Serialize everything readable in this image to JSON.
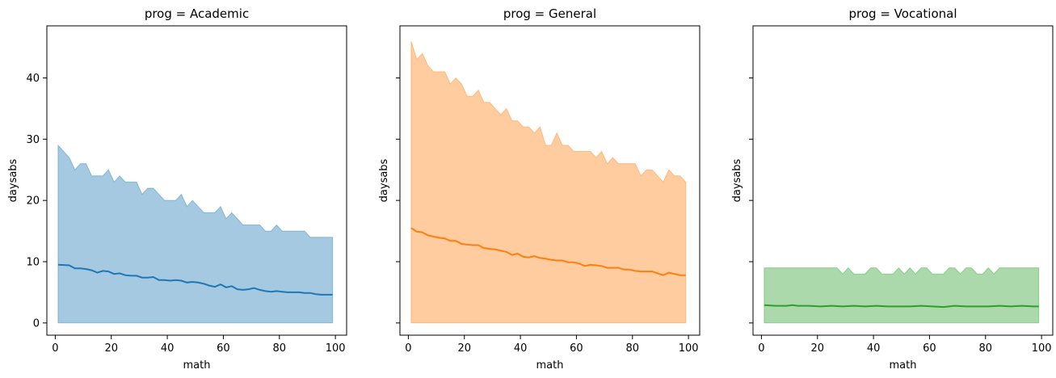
{
  "chart_data": [
    {
      "type": "area",
      "title": "prog = Academic",
      "xlabel": "math",
      "ylabel": "daysabs",
      "xlim": [
        -3,
        104
      ],
      "ylim": [
        -2,
        48.5
      ],
      "xticks": [
        0,
        20,
        40,
        60,
        80,
        100
      ],
      "yticks": [
        0,
        10,
        20,
        30,
        40
      ],
      "show_y_tick_labels": true,
      "grid": false,
      "color": "#1f77b4",
      "band_color": "#1f77b4",
      "band_lower": [
        [
          1,
          0
        ],
        [
          99,
          0
        ]
      ],
      "band_upper": [
        [
          1,
          29
        ],
        [
          5,
          27
        ],
        [
          7,
          25
        ],
        [
          9,
          26
        ],
        [
          11,
          26
        ],
        [
          13,
          24
        ],
        [
          15,
          24
        ],
        [
          17,
          24
        ],
        [
          19,
          25
        ],
        [
          21,
          23
        ],
        [
          23,
          24
        ],
        [
          25,
          23
        ],
        [
          27,
          23
        ],
        [
          29,
          23
        ],
        [
          31,
          21
        ],
        [
          33,
          22
        ],
        [
          35,
          22
        ],
        [
          37,
          21
        ],
        [
          39,
          20
        ],
        [
          41,
          20
        ],
        [
          43,
          20
        ],
        [
          45,
          21
        ],
        [
          47,
          19
        ],
        [
          49,
          20
        ],
        [
          51,
          19
        ],
        [
          53,
          18
        ],
        [
          55,
          18
        ],
        [
          57,
          18
        ],
        [
          59,
          19
        ],
        [
          61,
          17
        ],
        [
          63,
          18
        ],
        [
          65,
          17
        ],
        [
          67,
          16
        ],
        [
          69,
          16
        ],
        [
          71,
          16
        ],
        [
          73,
          16
        ],
        [
          75,
          15
        ],
        [
          77,
          15
        ],
        [
          79,
          16
        ],
        [
          81,
          15
        ],
        [
          83,
          15
        ],
        [
          85,
          15
        ],
        [
          87,
          15
        ],
        [
          89,
          15
        ],
        [
          91,
          14
        ],
        [
          93,
          14
        ],
        [
          95,
          14
        ],
        [
          97,
          14
        ],
        [
          99,
          14
        ]
      ],
      "line": [
        [
          1,
          9.5
        ],
        [
          5,
          9.4
        ],
        [
          7,
          8.9
        ],
        [
          9,
          8.9
        ],
        [
          11,
          8.8
        ],
        [
          13,
          8.6
        ],
        [
          15,
          8.2
        ],
        [
          17,
          8.5
        ],
        [
          19,
          8.4
        ],
        [
          21,
          8.0
        ],
        [
          23,
          8.1
        ],
        [
          25,
          7.8
        ],
        [
          27,
          7.7
        ],
        [
          29,
          7.7
        ],
        [
          31,
          7.4
        ],
        [
          33,
          7.4
        ],
        [
          35,
          7.5
        ],
        [
          37,
          7.0
        ],
        [
          39,
          7.0
        ],
        [
          41,
          6.9
        ],
        [
          43,
          7.0
        ],
        [
          45,
          6.9
        ],
        [
          47,
          6.6
        ],
        [
          49,
          6.7
        ],
        [
          51,
          6.6
        ],
        [
          53,
          6.4
        ],
        [
          55,
          6.1
        ],
        [
          57,
          5.9
        ],
        [
          59,
          6.3
        ],
        [
          61,
          5.8
        ],
        [
          63,
          6.0
        ],
        [
          65,
          5.5
        ],
        [
          67,
          5.4
        ],
        [
          69,
          5.5
        ],
        [
          71,
          5.7
        ],
        [
          73,
          5.4
        ],
        [
          75,
          5.2
        ],
        [
          77,
          5.1
        ],
        [
          79,
          5.2
        ],
        [
          81,
          5.1
        ],
        [
          83,
          5.0
        ],
        [
          85,
          5.0
        ],
        [
          87,
          5.0
        ],
        [
          89,
          4.9
        ],
        [
          91,
          4.9
        ],
        [
          93,
          4.7
        ],
        [
          95,
          4.6
        ],
        [
          97,
          4.6
        ],
        [
          99,
          4.6
        ]
      ]
    },
    {
      "type": "area",
      "title": "prog = General",
      "xlabel": "math",
      "ylabel": "daysabs",
      "xlim": [
        -3,
        104
      ],
      "ylim": [
        -2,
        48.5
      ],
      "xticks": [
        0,
        20,
        40,
        60,
        80,
        100
      ],
      "yticks": [
        0,
        10,
        20,
        30,
        40
      ],
      "show_y_tick_labels": false,
      "grid": false,
      "color": "#ff7f0e",
      "band_color": "#ff7f0e",
      "band_lower": [
        [
          1,
          0
        ],
        [
          99,
          0
        ]
      ],
      "band_upper": [
        [
          1,
          46
        ],
        [
          3,
          43
        ],
        [
          5,
          44
        ],
        [
          7,
          42
        ],
        [
          9,
          41
        ],
        [
          11,
          41
        ],
        [
          13,
          41
        ],
        [
          15,
          39
        ],
        [
          17,
          40
        ],
        [
          19,
          39
        ],
        [
          21,
          37
        ],
        [
          23,
          37
        ],
        [
          25,
          38
        ],
        [
          27,
          36
        ],
        [
          29,
          36
        ],
        [
          31,
          35
        ],
        [
          33,
          34
        ],
        [
          35,
          35
        ],
        [
          37,
          33
        ],
        [
          39,
          33
        ],
        [
          41,
          32
        ],
        [
          43,
          32
        ],
        [
          45,
          31
        ],
        [
          47,
          32
        ],
        [
          49,
          29
        ],
        [
          51,
          29
        ],
        [
          53,
          31
        ],
        [
          55,
          29
        ],
        [
          57,
          29
        ],
        [
          59,
          28
        ],
        [
          61,
          28
        ],
        [
          63,
          28
        ],
        [
          65,
          28
        ],
        [
          67,
          27
        ],
        [
          69,
          28
        ],
        [
          71,
          26
        ],
        [
          73,
          27
        ],
        [
          75,
          26
        ],
        [
          77,
          26
        ],
        [
          79,
          26
        ],
        [
          81,
          26
        ],
        [
          83,
          24
        ],
        [
          85,
          25
        ],
        [
          87,
          25
        ],
        [
          89,
          24
        ],
        [
          91,
          23
        ],
        [
          93,
          25
        ],
        [
          95,
          24
        ],
        [
          97,
          24
        ],
        [
          99,
          23
        ]
      ],
      "line": [
        [
          1,
          15.5
        ],
        [
          3,
          14.9
        ],
        [
          5,
          14.8
        ],
        [
          7,
          14.3
        ],
        [
          9,
          14.1
        ],
        [
          11,
          13.9
        ],
        [
          13,
          13.8
        ],
        [
          15,
          13.4
        ],
        [
          17,
          13.4
        ],
        [
          19,
          12.9
        ],
        [
          21,
          12.8
        ],
        [
          23,
          12.7
        ],
        [
          25,
          12.7
        ],
        [
          27,
          12.2
        ],
        [
          29,
          12.1
        ],
        [
          31,
          12.0
        ],
        [
          33,
          11.8
        ],
        [
          35,
          11.6
        ],
        [
          37,
          11.1
        ],
        [
          39,
          11.3
        ],
        [
          41,
          10.8
        ],
        [
          43,
          10.7
        ],
        [
          45,
          10.9
        ],
        [
          47,
          10.6
        ],
        [
          49,
          10.5
        ],
        [
          51,
          10.3
        ],
        [
          53,
          10.2
        ],
        [
          55,
          10.2
        ],
        [
          57,
          9.9
        ],
        [
          59,
          9.9
        ],
        [
          61,
          9.7
        ],
        [
          63,
          9.3
        ],
        [
          65,
          9.5
        ],
        [
          67,
          9.4
        ],
        [
          69,
          9.3
        ],
        [
          71,
          9.0
        ],
        [
          73,
          9.0
        ],
        [
          75,
          9.0
        ],
        [
          77,
          8.7
        ],
        [
          79,
          8.7
        ],
        [
          81,
          8.5
        ],
        [
          83,
          8.4
        ],
        [
          85,
          8.4
        ],
        [
          87,
          8.4
        ],
        [
          89,
          8.1
        ],
        [
          91,
          7.8
        ],
        [
          93,
          8.2
        ],
        [
          95,
          8.0
        ],
        [
          97,
          7.8
        ],
        [
          99,
          7.8
        ]
      ]
    },
    {
      "type": "area",
      "title": "prog = Vocational",
      "xlabel": "math",
      "ylabel": "daysabs",
      "xlim": [
        -3,
        104
      ],
      "ylim": [
        -2,
        48.5
      ],
      "xticks": [
        0,
        20,
        40,
        60,
        80,
        100
      ],
      "yticks": [
        0,
        10,
        20,
        30,
        40
      ],
      "show_y_tick_labels": false,
      "grid": false,
      "color": "#2ca02c",
      "band_color": "#2ca02c",
      "band_lower": [
        [
          1,
          0
        ],
        [
          99,
          0
        ]
      ],
      "band_upper": [
        [
          1,
          9
        ],
        [
          27,
          9
        ],
        [
          29,
          8
        ],
        [
          31,
          9
        ],
        [
          33,
          8
        ],
        [
          35,
          8
        ],
        [
          37,
          8
        ],
        [
          39,
          9
        ],
        [
          41,
          9
        ],
        [
          43,
          8
        ],
        [
          45,
          8
        ],
        [
          47,
          8
        ],
        [
          49,
          9
        ],
        [
          51,
          8
        ],
        [
          53,
          9
        ],
        [
          55,
          8
        ],
        [
          57,
          9
        ],
        [
          59,
          9
        ],
        [
          61,
          8
        ],
        [
          63,
          8
        ],
        [
          65,
          8
        ],
        [
          67,
          9
        ],
        [
          69,
          9
        ],
        [
          71,
          8
        ],
        [
          73,
          9
        ],
        [
          75,
          9
        ],
        [
          77,
          8
        ],
        [
          79,
          8
        ],
        [
          81,
          9
        ],
        [
          83,
          8
        ],
        [
          85,
          9
        ],
        [
          87,
          9
        ],
        [
          89,
          9
        ],
        [
          91,
          9
        ],
        [
          93,
          9
        ],
        [
          95,
          9
        ],
        [
          97,
          9
        ],
        [
          99,
          9
        ]
      ],
      "line": [
        [
          1,
          2.9
        ],
        [
          5,
          2.8
        ],
        [
          9,
          2.8
        ],
        [
          11,
          2.9
        ],
        [
          13,
          2.8
        ],
        [
          17,
          2.8
        ],
        [
          21,
          2.7
        ],
        [
          25,
          2.8
        ],
        [
          29,
          2.7
        ],
        [
          33,
          2.8
        ],
        [
          37,
          2.7
        ],
        [
          41,
          2.8
        ],
        [
          45,
          2.7
        ],
        [
          49,
          2.7
        ],
        [
          53,
          2.7
        ],
        [
          57,
          2.8
        ],
        [
          61,
          2.7
        ],
        [
          65,
          2.6
        ],
        [
          69,
          2.8
        ],
        [
          73,
          2.7
        ],
        [
          77,
          2.7
        ],
        [
          81,
          2.7
        ],
        [
          85,
          2.8
        ],
        [
          89,
          2.7
        ],
        [
          93,
          2.8
        ],
        [
          97,
          2.7
        ],
        [
          99,
          2.7
        ]
      ]
    }
  ]
}
